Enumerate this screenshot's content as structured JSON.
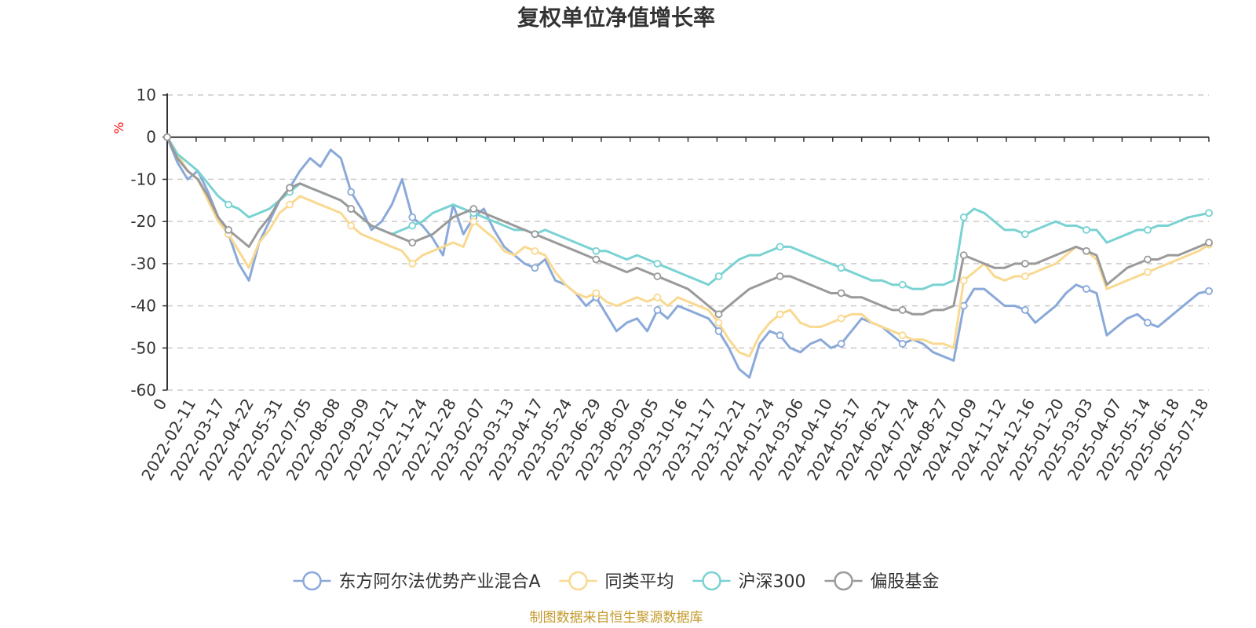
{
  "chart_data": {
    "type": "line",
    "title": "复权单位净值增长率",
    "unit_label": "%",
    "ylim": [
      -60,
      10
    ],
    "yticks": [
      10,
      0,
      -10,
      -20,
      -30,
      -40,
      -50,
      -60
    ],
    "x_tick_labels": [
      "0",
      "2022-02-11",
      "2022-03-17",
      "2022-04-22",
      "2022-05-31",
      "2022-07-05",
      "2022-08-08",
      "2022-09-09",
      "2022-10-21",
      "2022-11-24",
      "2022-12-28",
      "2023-02-07",
      "2023-03-13",
      "2023-04-17",
      "2023-05-24",
      "2023-06-29",
      "2023-08-02",
      "2023-09-05",
      "2023-10-16",
      "2023-11-17",
      "2023-12-21",
      "2024-01-24",
      "2024-03-06",
      "2024-04-10",
      "2024-05-17",
      "2024-06-21",
      "2024-07-24",
      "2024-08-27",
      "2024-10-09",
      "2024-11-12",
      "2024-12-16",
      "2025-01-20",
      "2025-03-03",
      "2025-04-07",
      "2025-05-14",
      "2025-06-18",
      "2025-07-18"
    ],
    "grid": "horizontal-dashed",
    "legend_position": "bottom",
    "series": [
      {
        "name": "东方阿尔法优势产业混合A",
        "color": "#8aa9d9",
        "values": [
          0,
          -6,
          -10,
          -8,
          -13,
          -19,
          -23,
          -30,
          -34,
          -25,
          -20,
          -15,
          -12,
          -8,
          -5,
          -7,
          -3,
          -5,
          -13,
          -17,
          -22,
          -20,
          -16,
          -10,
          -19,
          -21,
          -24,
          -28,
          -16,
          -23,
          -19,
          -17,
          -22,
          -26,
          -28,
          -30,
          -31,
          -29,
          -34,
          -35,
          -37,
          -40,
          -38,
          -42,
          -46,
          -44,
          -43,
          -46,
          -41,
          -43,
          -40,
          -41,
          -42,
          -43,
          -46,
          -50,
          -55,
          -57,
          -49,
          -46,
          -47,
          -50,
          -51,
          -49,
          -48,
          -50,
          -49,
          -46,
          -43,
          -44,
          -45,
          -47,
          -49,
          -48,
          -49,
          -51,
          -52,
          -53,
          -40,
          -36,
          -36,
          -38,
          -40,
          -40,
          -41,
          -44,
          -42,
          -40,
          -37,
          -35,
          -36,
          -37,
          -47,
          -45,
          -43,
          -42,
          -44,
          -45,
          -43,
          -41,
          -39,
          -37,
          -36.5
        ]
      },
      {
        "name": "同类平均",
        "color": "#f9d990",
        "values": [
          0,
          -4,
          -8,
          -10,
          -15,
          -20,
          -23,
          -27,
          -31,
          -25,
          -22,
          -18,
          -16,
          -14,
          -15,
          -16,
          -17,
          -18,
          -21,
          -23,
          -24,
          -25,
          -26,
          -27,
          -30,
          -28,
          -27,
          -26,
          -25,
          -26,
          -20,
          -22,
          -24,
          -27,
          -28,
          -26,
          -27,
          -28,
          -32,
          -35,
          -37,
          -38,
          -37,
          -39,
          -40,
          -39,
          -38,
          -39,
          -38,
          -40,
          -38,
          -39,
          -40,
          -41,
          -44,
          -48,
          -51,
          -52,
          -47,
          -44,
          -42,
          -41,
          -44,
          -45,
          -45,
          -44,
          -43,
          -42,
          -42,
          -44,
          -45,
          -46,
          -47,
          -48,
          -48,
          -49,
          -49,
          -50,
          -34,
          -32,
          -30,
          -33,
          -34,
          -33,
          -33,
          -32,
          -31,
          -30,
          -28,
          -26,
          -27,
          -29,
          -36,
          -35,
          -34,
          -33,
          -32,
          -31,
          -30,
          -29,
          -28,
          -27,
          -25.5
        ]
      },
      {
        "name": "沪深300",
        "color": "#7ad2d2",
        "values": [
          0,
          -4,
          -6,
          -8,
          -11,
          -14,
          -16,
          -17,
          -19,
          -18,
          -17,
          -15,
          -13,
          -11,
          -12,
          -13,
          -14,
          -15,
          -17,
          -19,
          -21,
          -22,
          -23,
          -22,
          -21,
          -20,
          -18,
          -17,
          -16,
          -17,
          -18,
          -19,
          -20,
          -21,
          -22,
          -22,
          -23,
          -22,
          -23,
          -24,
          -25,
          -26,
          -27,
          -27,
          -28,
          -29,
          -28,
          -29,
          -30,
          -31,
          -32,
          -33,
          -34,
          -35,
          -33,
          -31,
          -29,
          -28,
          -28,
          -27,
          -26,
          -26,
          -27,
          -28,
          -29,
          -30,
          -31,
          -32,
          -33,
          -34,
          -34,
          -35,
          -35,
          -36,
          -36,
          -35,
          -35,
          -34,
          -19,
          -17,
          -18,
          -20,
          -22,
          -22,
          -23,
          -22,
          -21,
          -20,
          -21,
          -21,
          -22,
          -22,
          -25,
          -24,
          -23,
          -22,
          -22,
          -21,
          -21,
          -20,
          -19,
          -18.5,
          -18
        ]
      },
      {
        "name": "偏股基金",
        "color": "#9a9a9a",
        "values": [
          0,
          -5,
          -8,
          -10,
          -14,
          -19,
          -22,
          -24,
          -26,
          -22,
          -19,
          -15,
          -12,
          -11,
          -12,
          -13,
          -14,
          -15,
          -17,
          -19,
          -21,
          -22,
          -23,
          -24,
          -25,
          -24,
          -23,
          -21,
          -19,
          -18,
          -17,
          -18,
          -19,
          -20,
          -21,
          -22,
          -23,
          -24,
          -25,
          -26,
          -27,
          -28,
          -29,
          -30,
          -31,
          -32,
          -31,
          -32,
          -33,
          -34,
          -35,
          -36,
          -38,
          -40,
          -42,
          -40,
          -38,
          -36,
          -35,
          -34,
          -33,
          -33,
          -34,
          -35,
          -36,
          -37,
          -37,
          -38,
          -38,
          -39,
          -40,
          -41,
          -41,
          -42,
          -42,
          -41,
          -41,
          -40,
          -28,
          -29,
          -30,
          -31,
          -31,
          -30,
          -30,
          -30,
          -29,
          -28,
          -27,
          -26,
          -27,
          -28,
          -35,
          -33,
          -31,
          -30,
          -29,
          -29,
          -28,
          -28,
          -27,
          -26,
          -25
        ]
      }
    ]
  },
  "footer": {
    "source": "制图数据来自恒生聚源数据库"
  }
}
